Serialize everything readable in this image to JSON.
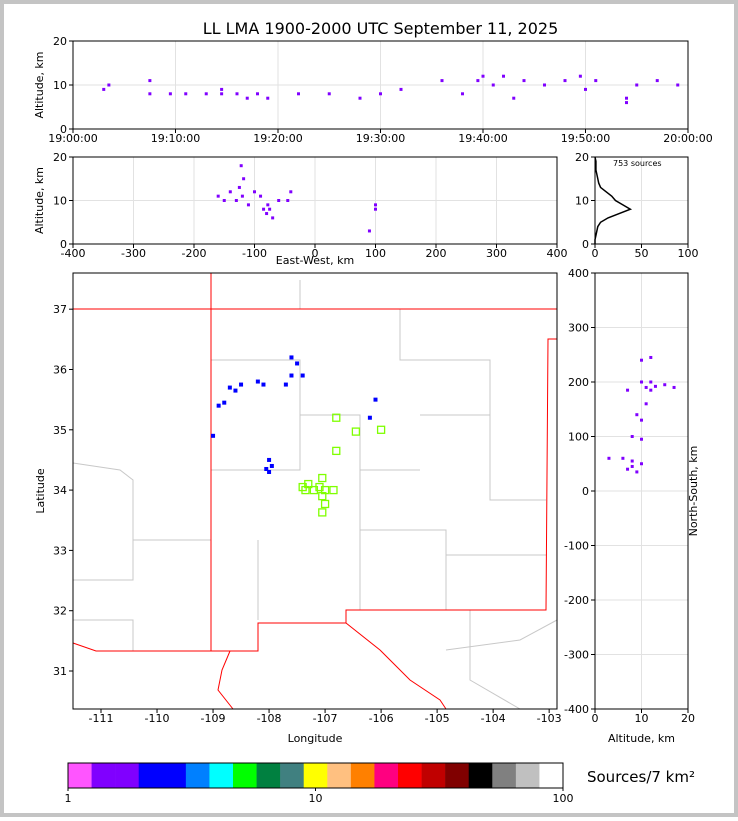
{
  "chart_data": [
    {
      "type": "scatter",
      "title": "LL LMA 1900-2000 UTC September 11, 2025",
      "y_label": "Altitude, km",
      "x": [
        3,
        3.5,
        7.5,
        7.5,
        9.5,
        11,
        13,
        14.5,
        14.5,
        16,
        17,
        18,
        19,
        22,
        25,
        28,
        30,
        32,
        36,
        38,
        39.5,
        40,
        41,
        42,
        43,
        44,
        46,
        48,
        49.5,
        50,
        51,
        54,
        54,
        55,
        57,
        59
      ],
      "values": [
        9,
        10,
        8,
        11,
        8,
        8,
        8,
        8,
        9,
        8,
        7,
        8,
        7,
        8,
        8,
        7,
        8,
        9,
        11,
        8,
        11,
        12,
        10,
        12,
        7,
        11,
        10,
        11,
        12,
        9,
        11,
        7,
        6,
        10,
        11,
        10
      ],
      "color": "#8000ff",
      "xlim": [
        0,
        60
      ],
      "xticks": [
        {
          "value": 0,
          "label": "19:00:00"
        },
        {
          "value": 10,
          "label": "19:10:00"
        },
        {
          "value": 20,
          "label": "19:20:00"
        },
        {
          "value": 30,
          "label": "19:30:00"
        },
        {
          "value": 40,
          "label": "19:40:00"
        },
        {
          "value": 50,
          "label": "19:50:00"
        },
        {
          "value": 60,
          "label": "20:00:00"
        }
      ],
      "ylim": [
        0,
        20
      ],
      "yticks": [
        0,
        10,
        20
      ],
      "grid": true
    },
    {
      "type": "scatter",
      "x_label": "East-West, km",
      "y_label": "Altitude, km",
      "x": [
        -160,
        -150,
        -140,
        -130,
        -125,
        -122,
        -120,
        -118,
        -110,
        -100,
        -90,
        -85,
        -80,
        -78,
        -75,
        -70,
        -60,
        -45,
        -40,
        100,
        100,
        90
      ],
      "values": [
        11,
        10,
        12,
        10,
        13,
        18,
        11,
        15,
        9,
        12,
        11,
        8,
        7,
        9,
        8,
        6,
        10,
        10,
        12,
        9,
        8,
        3
      ],
      "color": "#8000ff",
      "xlim": [
        -400,
        400
      ],
      "xticks": [
        -400,
        -300,
        -200,
        -100,
        0,
        100,
        200,
        300,
        400
      ],
      "ylim": [
        0,
        20
      ],
      "yticks": [
        0,
        10,
        20
      ],
      "grid": true
    },
    {
      "type": "line",
      "orientation": "horizontal",
      "annotation": "753 sources",
      "altitudes": [
        0,
        1,
        2,
        3,
        4,
        5,
        6,
        7,
        8,
        9,
        10,
        11,
        12,
        13,
        14,
        15,
        16,
        17,
        18,
        19,
        20
      ],
      "values": [
        0,
        0,
        1,
        2,
        3,
        6,
        14,
        26,
        38,
        30,
        22,
        18,
        12,
        6,
        4,
        3,
        2,
        1,
        1,
        1,
        0
      ],
      "color": "#000000",
      "xlim": [
        0,
        100
      ],
      "xticks": [
        0,
        50,
        100
      ],
      "ylim": [
        0,
        20
      ],
      "yticks": [
        0,
        10,
        20
      ],
      "grid": true
    },
    {
      "type": "map",
      "x_label": "Longitude",
      "y_label": "Latitude",
      "x": [
        -108.7,
        -108.6,
        -108.5,
        -108.8,
        -108.9,
        -108.2,
        -108.1,
        -107.7,
        -107.6,
        -107.5,
        -107.6,
        -107.4,
        -109.0,
        -108.0,
        -107.95,
        -108.05,
        -108.0,
        -106.2,
        -106.1
      ],
      "values": [
        35.7,
        35.65,
        35.75,
        35.45,
        35.4,
        35.8,
        35.75,
        35.75,
        35.9,
        36.1,
        36.2,
        35.9,
        34.9,
        34.5,
        34.4,
        34.35,
        34.3,
        35.2,
        35.5
      ],
      "color": "#0000ff",
      "stations": {
        "longitude": [
          -106.8,
          -106.45,
          -106.0,
          -106.8,
          -107.05,
          -107.3,
          -107.1,
          -107.0,
          -106.85,
          -107.35,
          -107.2,
          -107.05,
          -107.0,
          -107.05,
          -107.4
        ],
        "latitude": [
          35.2,
          34.97,
          35.0,
          34.65,
          34.2,
          34.1,
          34.05,
          34.0,
          34.0,
          34.0,
          34.0,
          33.9,
          33.77,
          33.63,
          34.05
        ],
        "color": "#7fff00"
      },
      "xlim": [
        -111.5,
        -102.86
      ],
      "xticks": [
        -111,
        -110,
        -109,
        -108,
        -107,
        -106,
        -105,
        -104,
        -103
      ],
      "ylim": [
        30.37,
        37.6
      ],
      "yticks": [
        31,
        32,
        33,
        34,
        35,
        36,
        37
      ],
      "grid": false
    },
    {
      "type": "scatter",
      "x_label": "Altitude, km",
      "y_label": "North-South, km",
      "x": [
        10,
        11,
        12,
        13,
        12,
        10,
        12,
        9,
        10,
        11,
        7,
        15,
        17,
        8,
        8,
        7,
        9,
        10,
        6,
        3,
        8,
        10
      ],
      "values": [
        200,
        190,
        185,
        192,
        200,
        240,
        245,
        140,
        130,
        160,
        185,
        195,
        190,
        55,
        45,
        40,
        35,
        50,
        60,
        60,
        100,
        95
      ],
      "color": "#8000ff",
      "xlim": [
        0,
        20
      ],
      "xticks": [
        0,
        10,
        20
      ],
      "ylim": [
        -400,
        400
      ],
      "yticks": [
        -400,
        -300,
        -200,
        -100,
        0,
        100,
        200,
        300,
        400
      ],
      "grid": true
    },
    {
      "type": "colorbar",
      "label": "Sources/7 km²",
      "log": true,
      "colors": [
        "#ff55ff",
        "#8000ff",
        "#8000ff",
        "#0000ff",
        "#0000ff",
        "#0080ff",
        "#00ffff",
        "#00ff00",
        "#008040",
        "#408080",
        "#ffff00",
        "#ffc080",
        "#ff8000",
        "#ff0080",
        "#ff0000",
        "#c00000",
        "#800000",
        "#000000",
        "#808080",
        "#c0c0c0",
        "#ffffff"
      ],
      "xlim": [
        1,
        100
      ],
      "xticks": [
        1,
        10,
        100
      ]
    }
  ]
}
